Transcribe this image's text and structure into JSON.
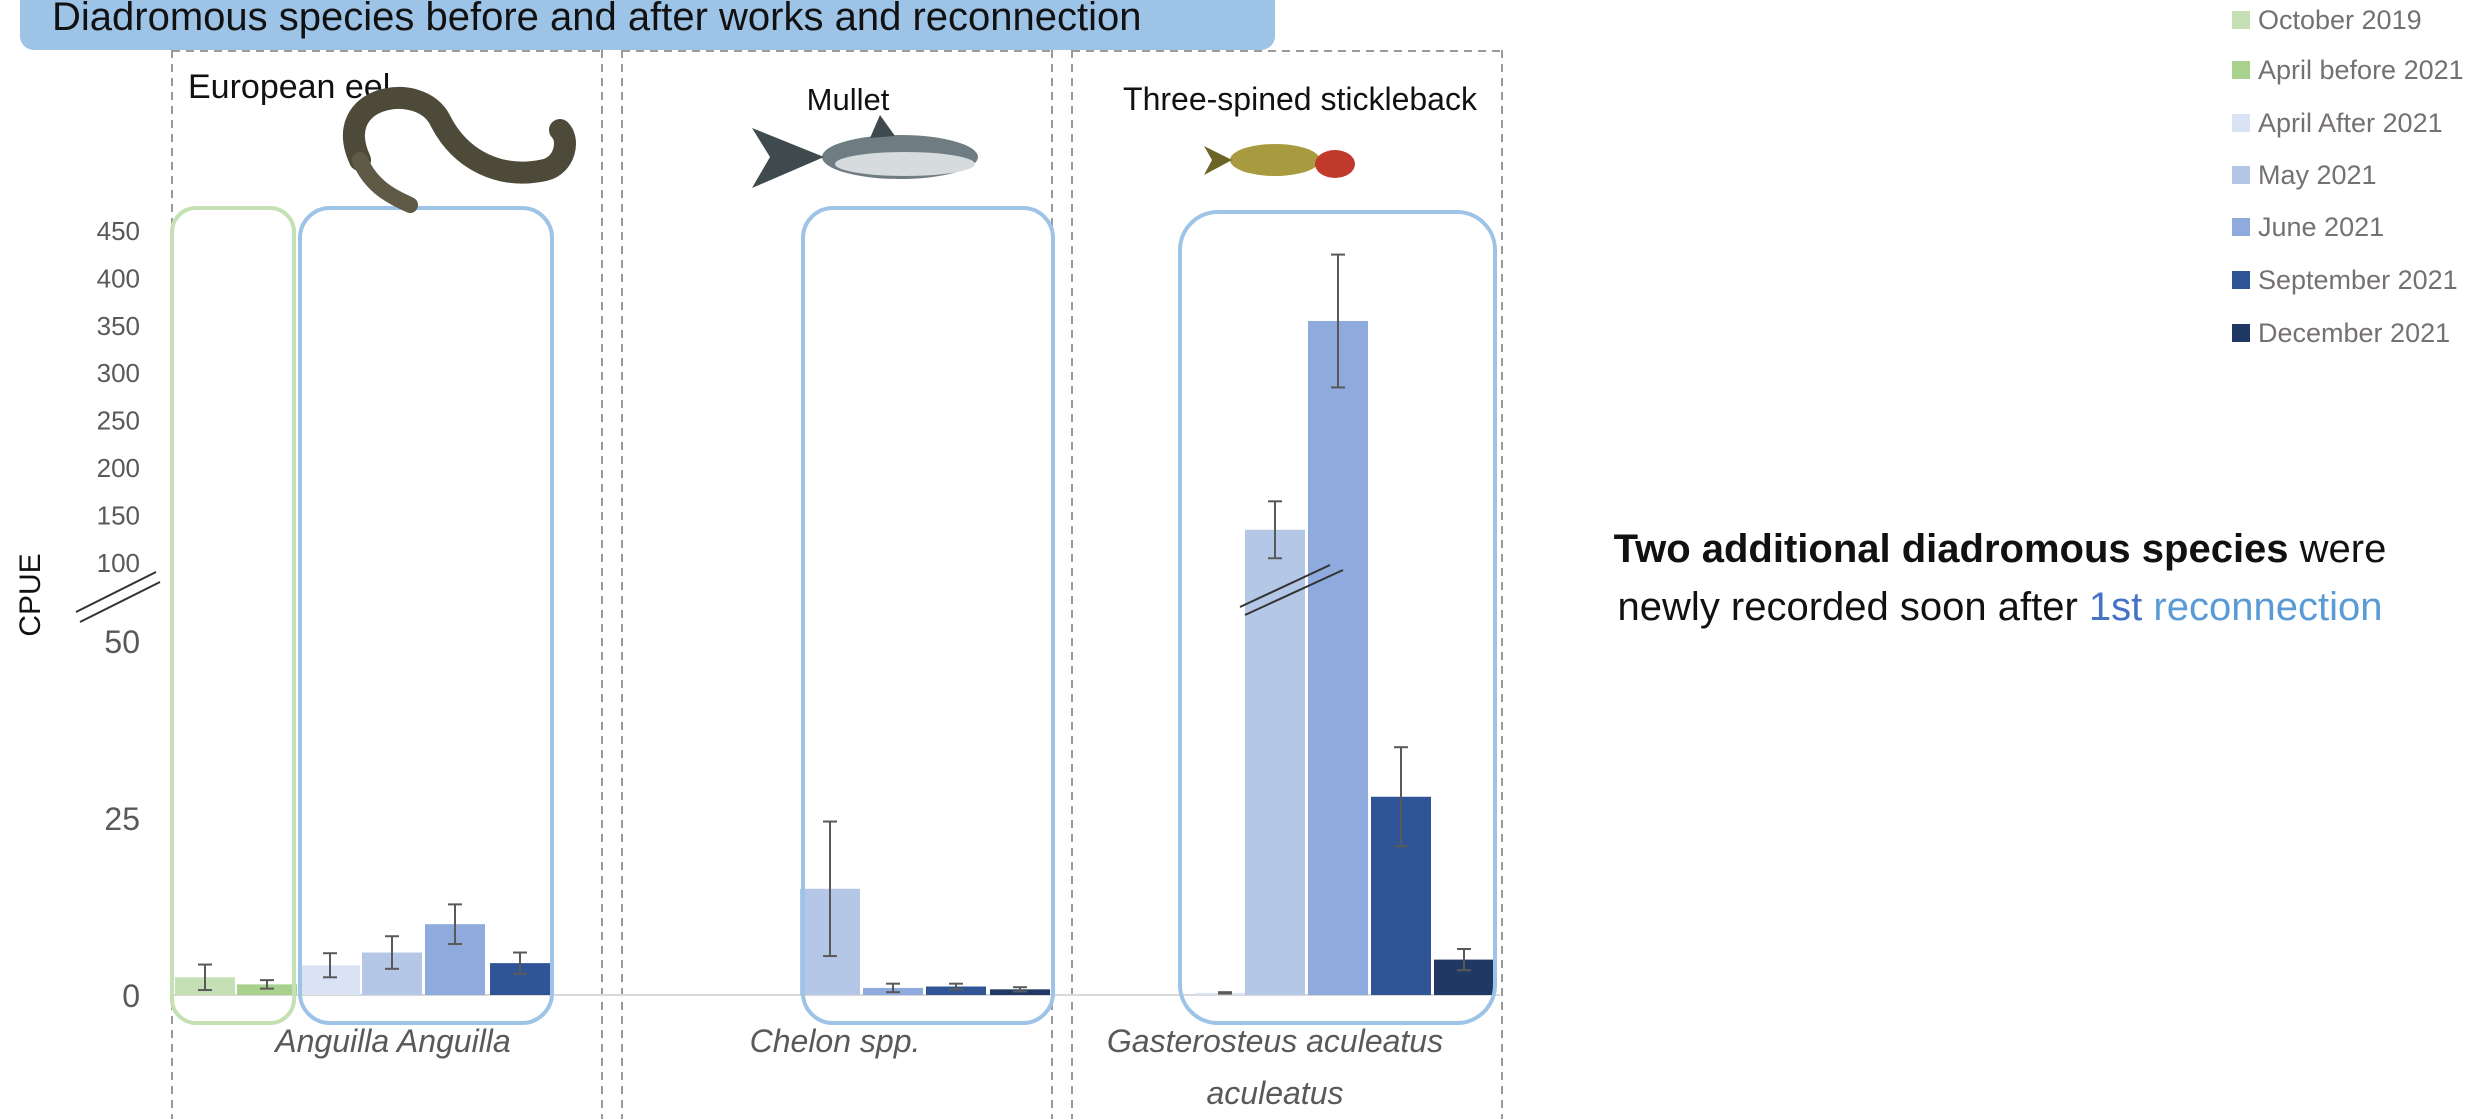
{
  "title": "Diadromous species before and after works and reconnection",
  "note": {
    "bold": "Two additional diadromous species",
    "plain1": " were newly recorded soon after ",
    "highlight1": "1st",
    "highlight2": "reconnection"
  },
  "legend": [
    {
      "name": "October 2019",
      "color": "#c5e0b4"
    },
    {
      "name": "April before 2021",
      "color": "#a9d18e"
    },
    {
      "name": "April After 2021",
      "color": "#dae3f3"
    },
    {
      "name": "May 2021",
      "color": "#b4c7e7"
    },
    {
      "name": "June 2021",
      "color": "#8faadc"
    },
    {
      "name": "September 2021",
      "color": "#2f5597"
    },
    {
      "name": "December 2021",
      "color": "#203864"
    }
  ],
  "chart_data": {
    "type": "bar",
    "ylabel": "CPUE",
    "broken_axis": true,
    "lower_ticks": [
      "0",
      "25",
      "50"
    ],
    "upper_ticks": [
      "100",
      "150",
      "200",
      "250",
      "300",
      "350",
      "400",
      "450"
    ],
    "categories": [
      "European eel",
      "Mullet",
      "Three-spined stickleback"
    ],
    "scientific_names": [
      "Anguilla Anguilla",
      "Chelon spp.",
      "Gasterosteus aculeatus aculeatus"
    ],
    "series": [
      {
        "name": "October 2019",
        "values": [
          2.5,
          0,
          0
        ],
        "errors": [
          1.8,
          0,
          0
        ]
      },
      {
        "name": "April before 2021",
        "values": [
          1.5,
          0,
          0
        ],
        "errors": [
          0.6,
          0,
          0
        ]
      },
      {
        "name": "April After 2021",
        "values": [
          4.2,
          0,
          0.3
        ],
        "errors": [
          1.7,
          0,
          0.1
        ]
      },
      {
        "name": "May 2021",
        "values": [
          6,
          15,
          135
        ],
        "errors": [
          2.3,
          9.5,
          30
        ]
      },
      {
        "name": "June 2021",
        "values": [
          10,
          1,
          355
        ],
        "errors": [
          2.8,
          0.6,
          70
        ]
      },
      {
        "name": "September 2021",
        "values": [
          4.5,
          1.2,
          28
        ],
        "errors": [
          1.5,
          0.4,
          7
        ]
      },
      {
        "name": "December 2021",
        "values": [
          0,
          0.8,
          5
        ],
        "errors": [
          0,
          0.3,
          1.5
        ]
      }
    ]
  }
}
